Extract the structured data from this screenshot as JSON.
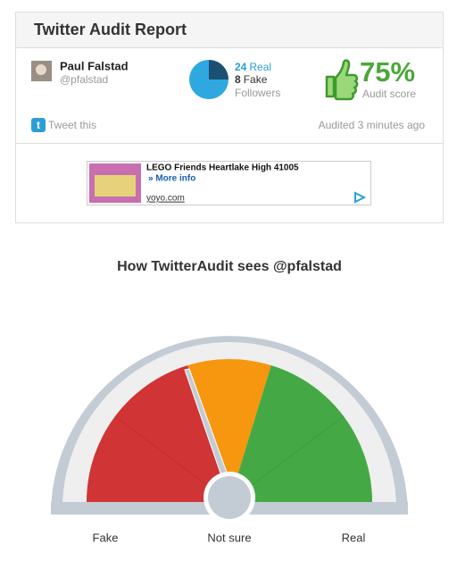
{
  "header": {
    "title": "Twitter Audit Report"
  },
  "profile": {
    "name": "Paul Falstad",
    "handle": "@pfalstad"
  },
  "followers": {
    "real": 24,
    "real_label": "Real",
    "fake": 8,
    "fake_label": "Fake",
    "caption": "Followers"
  },
  "score": {
    "value": "75%",
    "caption": "Audit score"
  },
  "actions": {
    "tweet": "Tweet this",
    "audited": "Audited 3 minutes ago"
  },
  "ad": {
    "title": "LEGO Friends Heartlake High 41005",
    "more": "» More info",
    "url": "yoyo.com"
  },
  "gauge": {
    "title": "How TwitterAudit sees @pfalstad",
    "labels": [
      "Fake",
      "Not sure",
      "Real"
    ]
  }
}
